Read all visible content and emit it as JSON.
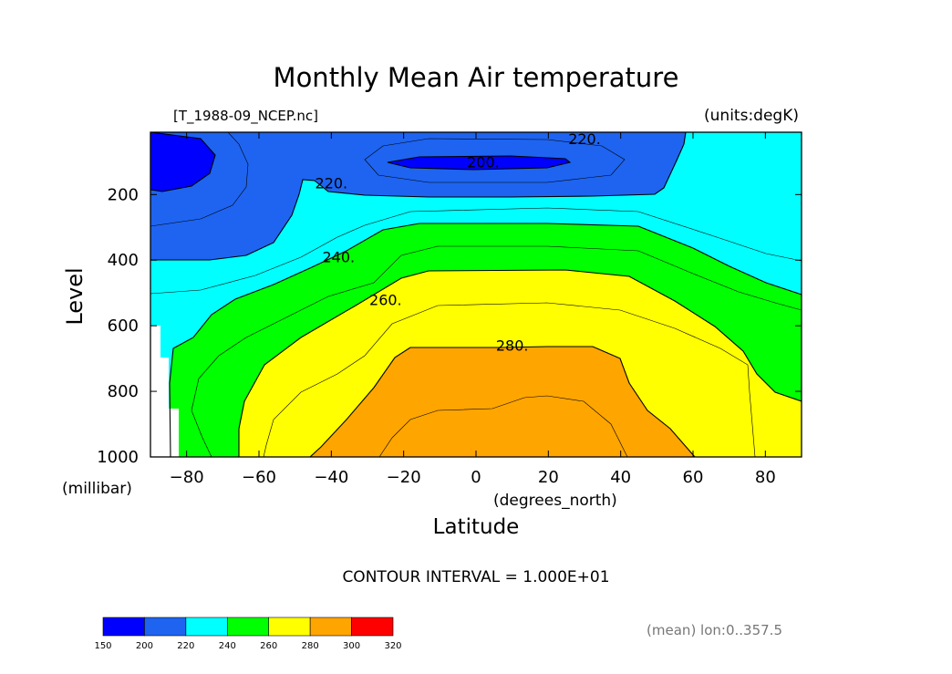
{
  "chart_data": {
    "type": "contour",
    "title": "Monthly Mean Air temperature",
    "source_label": "[T_1988-09_NCEP.nc]",
    "units_label": "(units:degK)",
    "xlabel": "Latitude",
    "x_units": "(degrees_north)",
    "ylabel": "Level",
    "y_units": "(millibar)",
    "xlim": [
      -90,
      90
    ],
    "ylim": [
      1000,
      10
    ],
    "x_ticks": [
      -80,
      -60,
      -40,
      -20,
      0,
      20,
      40,
      60,
      80
    ],
    "x_tick_labels": [
      "−80",
      "−60",
      "−40",
      "−20",
      "0",
      "20",
      "40",
      "60",
      "80"
    ],
    "y_ticks": [
      200,
      400,
      600,
      800,
      1000
    ],
    "y_tick_labels": [
      "200",
      "400",
      "600",
      "800",
      "1000"
    ],
    "contour_interval_label": "CONTOUR INTERVAL = 1.000E+01",
    "mean_label": "(mean) lon:0..357.5",
    "contour_labels": [
      {
        "text": "220.",
        "x": 30,
        "y": 30
      },
      {
        "text": "200.",
        "x": 2,
        "y": 100
      },
      {
        "text": "220.",
        "x": -40,
        "y": 165
      },
      {
        "text": "240.",
        "x": -38,
        "y": 390
      },
      {
        "text": "260.",
        "x": -25,
        "y": 520
      },
      {
        "text": "280.",
        "x": 10,
        "y": 660
      }
    ],
    "colorbar": {
      "boundaries": [
        150,
        200,
        220,
        240,
        260,
        280,
        300,
        320
      ],
      "labels": [
        "150",
        "200",
        "220",
        "240",
        "260",
        "280",
        "300",
        "320"
      ],
      "colors": [
        "#0000ff",
        "#1e64f0",
        "#00ffff",
        "#00ff00",
        "#ffff00",
        "#ffa500",
        "#ff0000"
      ]
    },
    "colors": {
      "below_200": "#0000ff",
      "band_200_220": "#1e64f0",
      "band_220_240": "#00ffff",
      "band_240_260": "#00ff00",
      "band_260_280": "#ffff00",
      "band_280_300": "#ffa500"
    }
  }
}
